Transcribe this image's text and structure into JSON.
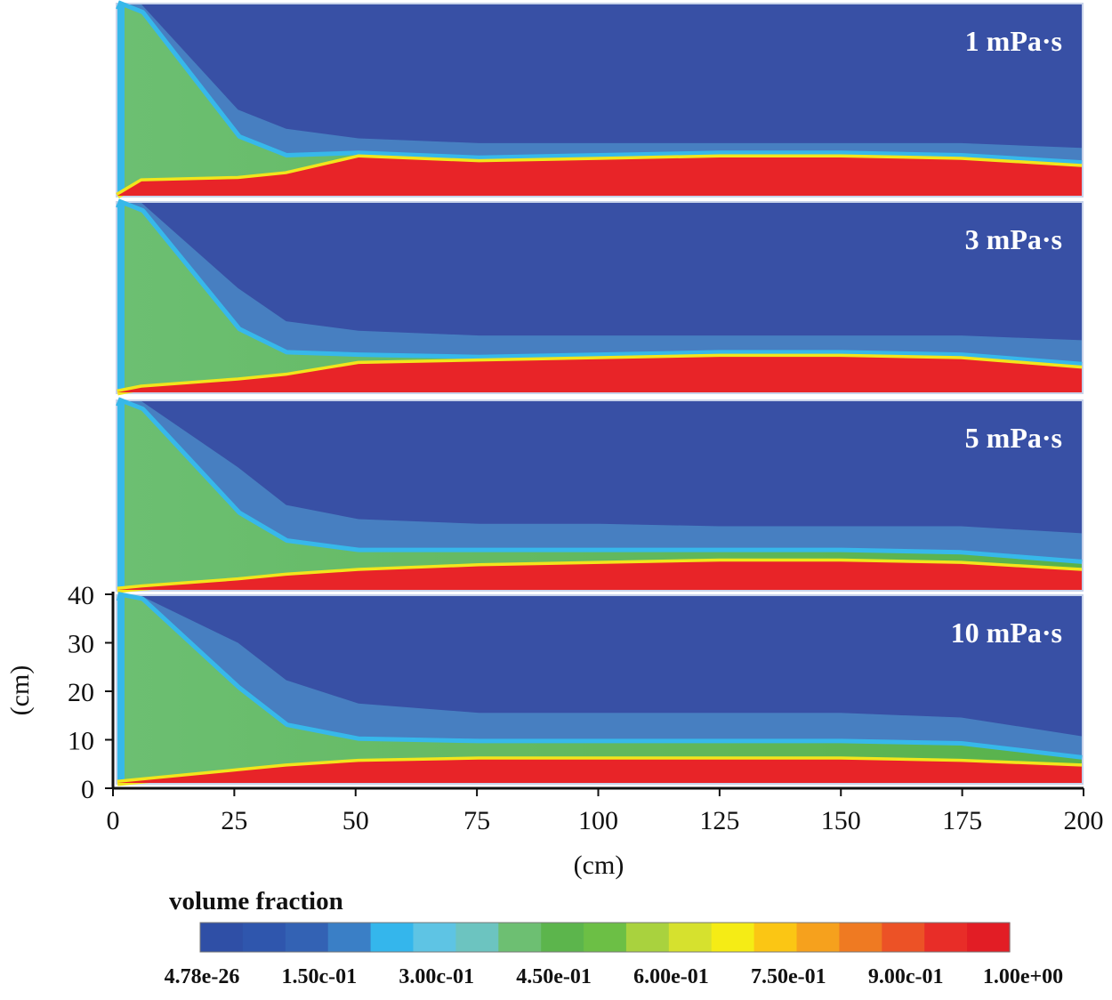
{
  "chart_data": {
    "type": "heatmap",
    "title": "",
    "xlabel": "(cm)",
    "ylabel": "(cm)",
    "xlim": [
      0,
      200
    ],
    "ylim": [
      0,
      40
    ],
    "x_ticks": [
      "0",
      "25",
      "50",
      "75",
      "100",
      "125",
      "150",
      "175",
      "200"
    ],
    "y_ticks": [
      "0",
      "10",
      "20",
      "30",
      "40"
    ],
    "panels": [
      {
        "label": "1 mPa·s",
        "interface_x": [
          0,
          5,
          25,
          35,
          50,
          75,
          100,
          125,
          150,
          175,
          200
        ],
        "dense_top_y": [
          0,
          3,
          3.5,
          4.5,
          8,
          7,
          7.5,
          8,
          8,
          7.5,
          6
        ],
        "plume_top_y": [
          40,
          38,
          12,
          8,
          8.5,
          7.5,
          8,
          8.5,
          8.5,
          8,
          6.5
        ],
        "diffuse_top_y": [
          40,
          40,
          18,
          14,
          12,
          11,
          11,
          11,
          11,
          11,
          10
        ]
      },
      {
        "label": "3 mPa·s",
        "interface_x": [
          0,
          5,
          25,
          35,
          50,
          75,
          100,
          125,
          150,
          175,
          200
        ],
        "dense_top_y": [
          0,
          1,
          2.5,
          3.5,
          6,
          6.5,
          7,
          7.5,
          7.5,
          7,
          5
        ],
        "plume_top_y": [
          40,
          38,
          13,
          8,
          7.5,
          7,
          7.5,
          8,
          8,
          7.5,
          5.5
        ],
        "diffuse_top_y": [
          40,
          40,
          22,
          15,
          13,
          12,
          12,
          12,
          12,
          12,
          11
        ]
      },
      {
        "label": "5 mPa·s",
        "interface_x": [
          0,
          5,
          25,
          35,
          50,
          75,
          100,
          125,
          150,
          175,
          200
        ],
        "dense_top_y": [
          0,
          0.5,
          2,
          3,
          4,
          5,
          5.5,
          6,
          6,
          5.5,
          4
        ],
        "plume_top_y": [
          40,
          38,
          16,
          10,
          8,
          8,
          8,
          8,
          8,
          7.5,
          5.5
        ],
        "diffuse_top_y": [
          40,
          40,
          26,
          18,
          15,
          14,
          14,
          13.5,
          13.5,
          13.5,
          12
        ]
      },
      {
        "label": "10 mPa·s",
        "interface_x": [
          0,
          5,
          25,
          35,
          50,
          75,
          100,
          125,
          150,
          175,
          200
        ],
        "dense_top_y": [
          0,
          0.5,
          2.5,
          3.5,
          4.5,
          5,
          5,
          5,
          5,
          4.5,
          3.5
        ],
        "plume_top_y": [
          40,
          39,
          20,
          12,
          9,
          8.5,
          8.5,
          8.5,
          8.5,
          8,
          5
        ],
        "diffuse_top_y": [
          40,
          40,
          30,
          22,
          17,
          15,
          15,
          15,
          15,
          14,
          10
        ]
      }
    ],
    "colorbar": {
      "title": "volume fraction",
      "labels": [
        "4.78e-26",
        "1.50c-01",
        "3.00c-01",
        "4.50e-01",
        "6.00e-01",
        "7.50e-01",
        "9.00c-01",
        "1.00e+00"
      ],
      "colors": [
        "#2f4fa6",
        "#2f56ad",
        "#3362b4",
        "#3a7fc6",
        "#34b6ec",
        "#5ec4e4",
        "#6cc4c0",
        "#6dbf72",
        "#5cb54c",
        "#6cbf45",
        "#a9d23e",
        "#d6e12e",
        "#f5ec15",
        "#fbc614",
        "#f6a11d",
        "#ef7a22",
        "#ec5226",
        "#e82d28",
        "#e21d25"
      ]
    },
    "colors": {
      "background": "#3850a5",
      "deep": "#2f48a0",
      "diffuse": "#4a87c6",
      "plume": "#6cbf5e",
      "plume_edge": "#37b8ea",
      "front": "#f2e51c",
      "dense": "#e82428",
      "panel_border": "#c8d3ea"
    }
  }
}
